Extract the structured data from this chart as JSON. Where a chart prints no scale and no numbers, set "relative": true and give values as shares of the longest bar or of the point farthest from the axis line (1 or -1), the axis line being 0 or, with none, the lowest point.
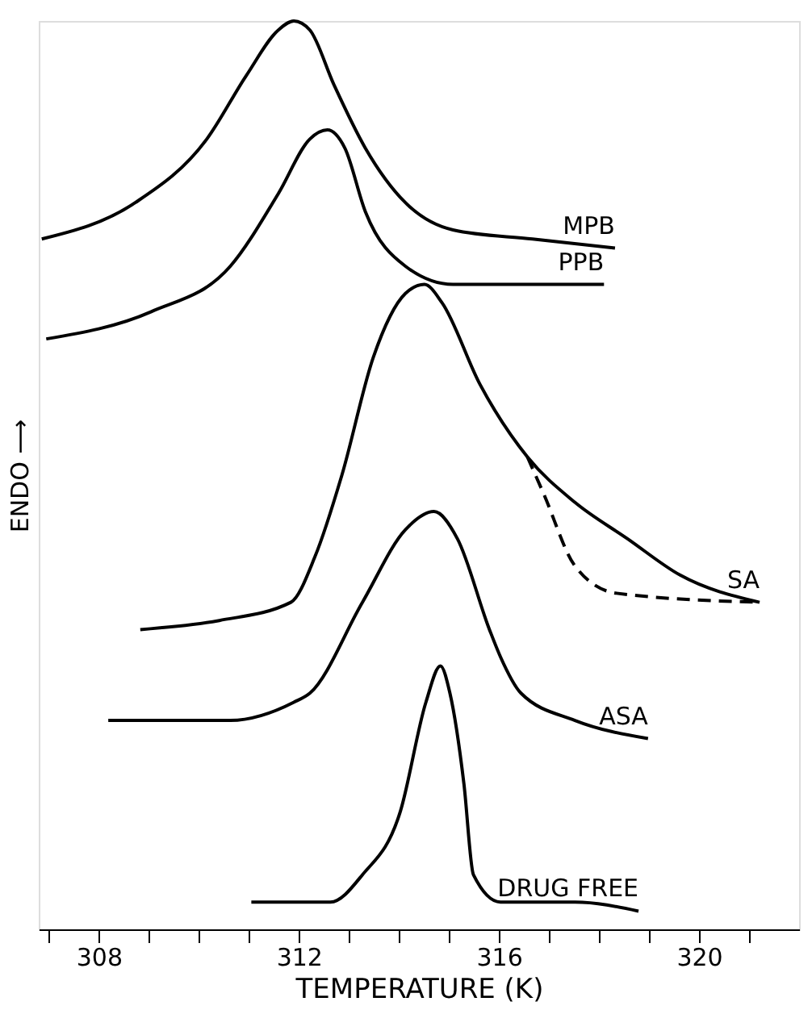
{
  "chart_data": {
    "type": "line",
    "relative": true,
    "xlabel": "TEMPERATURE (K)",
    "ylabel": "ENDO ⟶",
    "xlim": [
      306.8,
      322
    ],
    "xticks": [
      {
        "value": 307,
        "label": null
      },
      308,
      {
        "value": 309,
        "label": null
      },
      {
        "value": 310,
        "label": null
      },
      {
        "value": 311,
        "label": null
      },
      312,
      {
        "value": 313,
        "label": null
      },
      {
        "value": 314,
        "label": null
      },
      {
        "value": 315,
        "label": null
      },
      316,
      {
        "value": 317,
        "label": null
      },
      {
        "value": 318,
        "label": null
      },
      {
        "value": 319,
        "label": null
      },
      320,
      {
        "value": 321,
        "label": null
      }
    ],
    "grid": false,
    "marker": "none",
    "line_style": "solid",
    "series": [
      {
        "name": "MPB",
        "color": "#000000",
        "x": [
          306.86,
          308.73,
          310.16,
          310.95,
          311.59,
          311.9,
          312.22,
          312.7,
          313.33,
          314.13,
          315.08,
          316.67,
          318.32
        ],
        "values": [
          0.76,
          0.8,
          0.87,
          0.94,
          0.99,
          1,
          0.99,
          0.93,
          0.86,
          0.8,
          0.77,
          0.76,
          0.75
        ]
      },
      {
        "name": "PPB",
        "color": "#000000",
        "x": [
          306.95,
          309.05,
          310.63,
          311.59,
          312.22,
          312.57,
          312.92,
          313.33,
          314.13,
          315.08,
          316.67,
          318.1
        ],
        "values": [
          0.65,
          0.68,
          0.73,
          0.81,
          0.87,
          0.88,
          0.86,
          0.79,
          0.73,
          0.71,
          0.71,
          0.71
        ]
      },
      {
        "name": "SA",
        "color": "#000000",
        "x": [
          308.83,
          310.41,
          311.84,
          312.32,
          312.86,
          313.49,
          314.13,
          314.51,
          314.86,
          315.62,
          316.57,
          317.52,
          318.57,
          319.62,
          321.21
        ],
        "values": [
          0.33,
          0.34,
          0.36,
          0.41,
          0.5,
          0.63,
          0.7,
          0.71,
          0.69,
          0.6,
          0.52,
          0.47,
          0.43,
          0.39,
          0.36
        ]
      },
      {
        "color": "#000000",
        "line_style": "dashed",
        "x": [
          316.57,
          316.89,
          317.52,
          318.35,
          321.21
        ],
        "values": [
          0.52,
          0.48,
          0.4,
          0.37,
          0.36
        ]
      },
      {
        "name": "ASA",
        "color": "#000000",
        "x": [
          308.19,
          310.63,
          311.9,
          312.22,
          313.27,
          314.13,
          314.7,
          315.17,
          315.81,
          316.03,
          316.44,
          317.52,
          318.98
        ],
        "values": [
          0.23,
          0.23,
          0.25,
          0.26,
          0.36,
          0.44,
          0.46,
          0.43,
          0.33,
          0.3,
          0.26,
          0.23,
          0.21
        ]
      },
      {
        "name": "DRUG FREE",
        "color": "#000000",
        "x": [
          311.05,
          312.63,
          313.27,
          314.03,
          314.54,
          314.83,
          315.02,
          315.3,
          315.49,
          316.03,
          317.52,
          318.79
        ],
        "values": [
          0.03,
          0.03,
          0.06,
          0.13,
          0.25,
          0.29,
          0.26,
          0.16,
          0.06,
          0.03,
          0.03,
          0.02
        ]
      }
    ]
  }
}
